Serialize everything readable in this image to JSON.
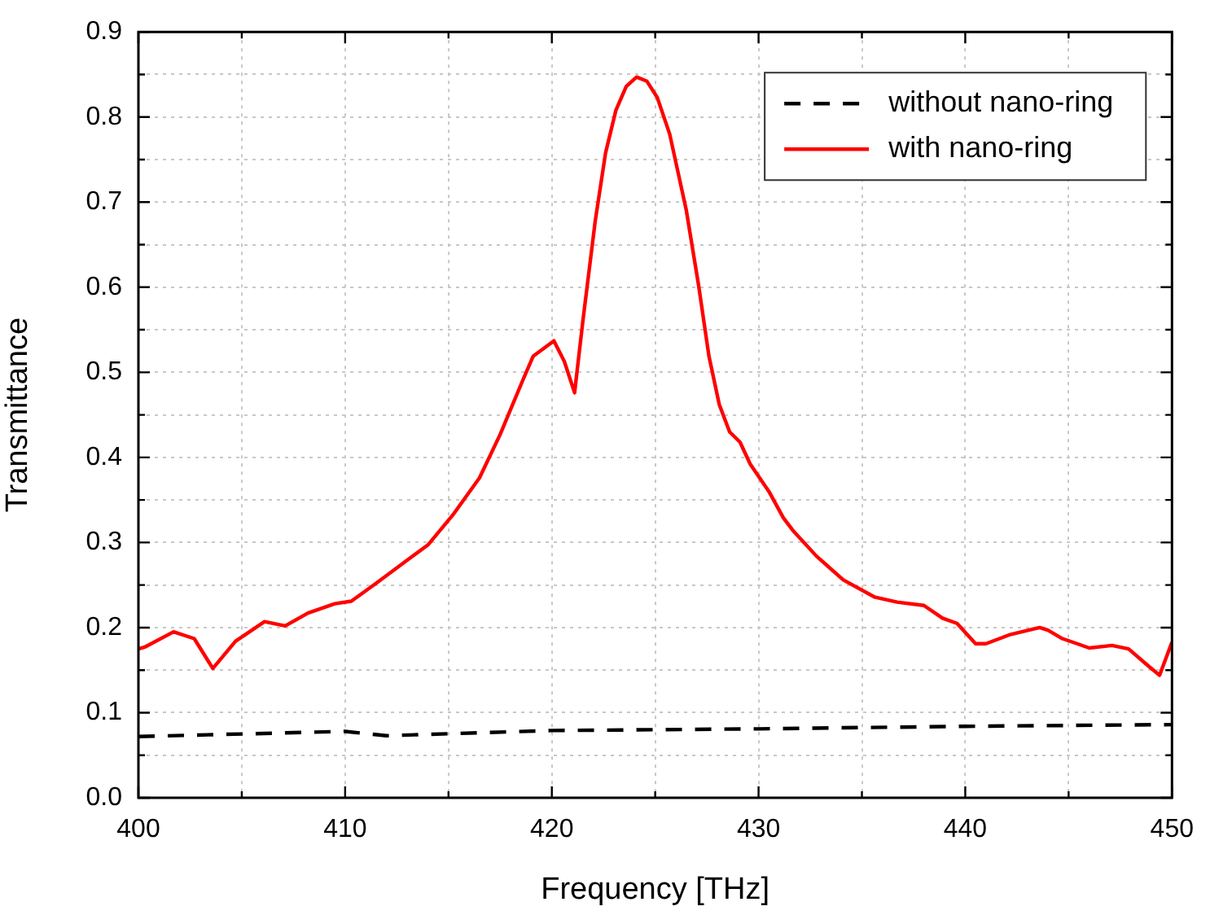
{
  "chart_data": {
    "type": "line",
    "xlabel": "Frequency [THz]",
    "ylabel": "Transmittance",
    "xlim": [
      400,
      450
    ],
    "xticks": [
      400,
      {
        "value": 405,
        "label": null
      },
      410,
      {
        "value": 415,
        "label": null
      },
      420,
      {
        "value": 425,
        "label": null
      },
      430,
      {
        "value": 435,
        "label": null
      },
      440,
      {
        "value": 445,
        "label": null
      },
      450
    ],
    "ylim": [
      0,
      0.9
    ],
    "yticks": [
      {
        "value": 0,
        "label": "0.0"
      },
      {
        "value": 0.05,
        "label": null
      },
      0.1,
      {
        "value": 0.15,
        "label": null
      },
      0.2,
      {
        "value": 0.25,
        "label": null
      },
      0.3,
      {
        "value": 0.35,
        "label": null
      },
      0.4,
      {
        "value": 0.45,
        "label": null
      },
      0.5,
      {
        "value": 0.55,
        "label": null
      },
      0.6,
      {
        "value": 0.65,
        "label": null
      },
      0.7,
      {
        "value": 0.75,
        "label": null
      },
      0.8,
      {
        "value": 0.85,
        "label": null
      },
      0.9
    ],
    "grid": true,
    "legend": "top right",
    "marker": "none",
    "series": [
      {
        "name": "without nano-ring",
        "color": "#000000",
        "line_style": "dashed",
        "x": [
          400,
          410,
          412,
          420,
          425,
          430,
          440,
          450
        ],
        "values": [
          0.072,
          0.078,
          0.073,
          0.079,
          0.08,
          0.081,
          0.084,
          0.086
        ]
      },
      {
        "name": "with nano-ring",
        "color": "#ff0000",
        "line_style": "solid",
        "x": [
          400,
          400.3,
          401.7,
          402.7,
          403.6,
          404.7,
          406.1,
          407.1,
          408.2,
          409.5,
          410.3,
          411.5,
          413.1,
          414,
          415.2,
          416.5,
          417.5,
          418.6,
          419.1,
          420.1,
          420.6,
          421.1,
          421.5,
          422.1,
          422.6,
          423.1,
          423.6,
          424.1,
          424.6,
          425.1,
          425.7,
          426.5,
          427.1,
          427.6,
          428.1,
          428.6,
          429.1,
          429.6,
          430.5,
          431.2,
          431.7,
          432.8,
          434.1,
          435.6,
          436.7,
          438,
          438.9,
          439.6,
          440.5,
          441,
          442.2,
          443.6,
          444,
          444.7,
          445.3,
          446,
          447.1,
          447.9,
          448.9,
          449.4,
          450
        ],
        "values": [
          0.175,
          0.177,
          0.195,
          0.187,
          0.152,
          0.184,
          0.207,
          0.202,
          0.217,
          0.228,
          0.231,
          0.252,
          0.281,
          0.297,
          0.332,
          0.376,
          0.427,
          0.491,
          0.519,
          0.537,
          0.513,
          0.476,
          0.56,
          0.678,
          0.758,
          0.808,
          0.836,
          0.847,
          0.842,
          0.823,
          0.78,
          0.691,
          0.602,
          0.519,
          0.462,
          0.43,
          0.418,
          0.392,
          0.36,
          0.329,
          0.313,
          0.284,
          0.256,
          0.236,
          0.23,
          0.226,
          0.211,
          0.205,
          0.181,
          0.181,
          0.192,
          0.2,
          0.197,
          0.187,
          0.182,
          0.176,
          0.179,
          0.175,
          0.154,
          0.144,
          0.183
        ]
      }
    ]
  }
}
